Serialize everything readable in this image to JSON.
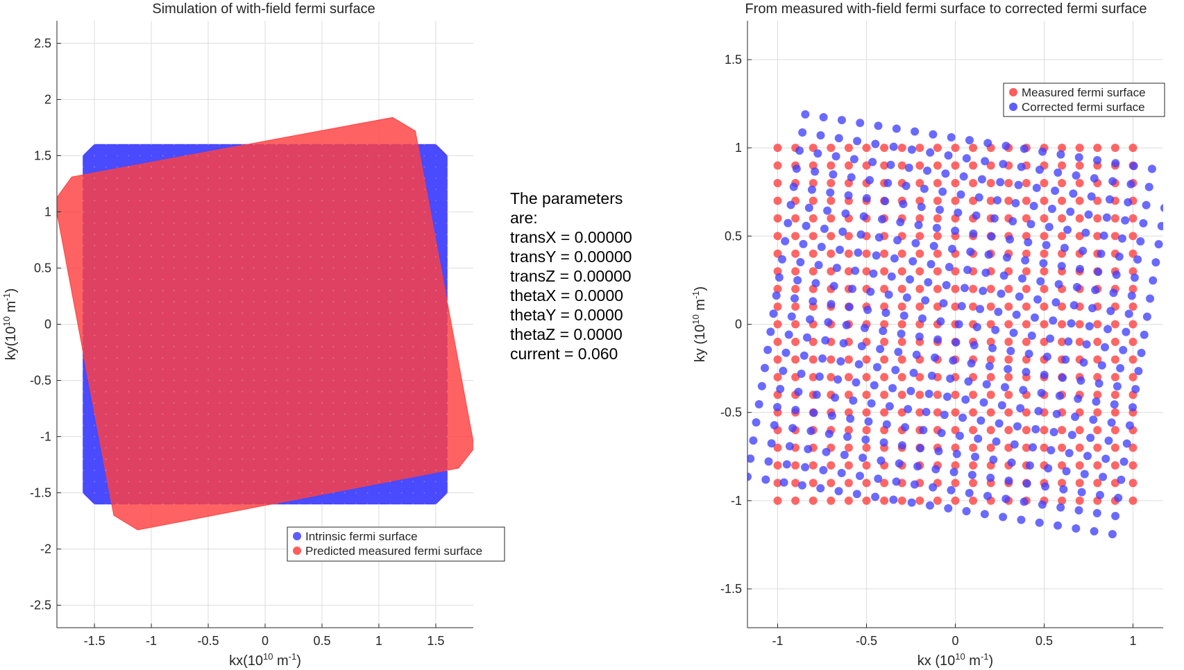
{
  "colors": {
    "blue": "#4040ff",
    "red": "#ff4040",
    "grid": "#dcdcdc",
    "axis": "#262626"
  },
  "chart_data": [
    {
      "type": "scatter",
      "title": "Simulation of with-field fermi surface",
      "xlabel": {
        "text": "kx(10",
        "sup": "10",
        "unit": " m",
        "unitsup": "-1",
        "close": ")"
      },
      "ylabel": {
        "text": "ky(10",
        "sup": "10",
        "unit": " m",
        "unitsup": "-1",
        "close": ")"
      },
      "xlim": [
        -1.83,
        1.83
      ],
      "ylim": [
        -2.7,
        2.7
      ],
      "xticks": [
        -1.5,
        -1,
        -0.5,
        0,
        0.5,
        1,
        1.5
      ],
      "xtick_labels": [
        "-1.5",
        "-1",
        "-0.5",
        "0",
        "0.5",
        "1",
        "1.5"
      ],
      "yticks": [
        -2.5,
        -2,
        -1.5,
        -1,
        -0.5,
        0,
        0.5,
        1,
        1.5,
        2,
        2.5
      ],
      "ytick_labels": [
        "-2.5",
        "-2",
        "-1.5",
        "-1",
        "-0.5",
        "0",
        "0.5",
        "1",
        "1.5",
        "2",
        "2.5"
      ],
      "grid": true,
      "legend_position": "bottom-right",
      "series": [
        {
          "name": "Intrinsic fermi surface",
          "color": "#4040ff",
          "polygon": [
            [
              -1.5,
              1.6
            ],
            [
              1.5,
              1.6
            ],
            [
              1.6,
              1.5
            ],
            [
              1.6,
              -1.5
            ],
            [
              1.5,
              -1.6
            ],
            [
              -1.5,
              -1.6
            ],
            [
              -1.6,
              -1.5
            ],
            [
              -1.6,
              1.5
            ]
          ]
        },
        {
          "name": "Predicted measured fermi surface",
          "color": "#ff4040",
          "polygon": [
            [
              1.12,
              1.84
            ],
            [
              1.32,
              1.72
            ],
            [
              1.84,
              -1.1
            ],
            [
              1.7,
              -1.28
            ],
            [
              -1.12,
              -1.83
            ],
            [
              -1.33,
              -1.7
            ],
            [
              -1.85,
              1.1
            ],
            [
              -1.7,
              1.31
            ]
          ]
        }
      ]
    },
    {
      "type": "scatter",
      "title": "From measured with-field fermi surface to corrected fermi surface",
      "xlabel": {
        "text": "kx  (10",
        "sup": "10",
        "unit": " m",
        "unitsup": "-1",
        "close": ")"
      },
      "ylabel": {
        "text": "ky  (10",
        "sup": "10",
        "unit": " m",
        "unitsup": "-1",
        "close": ")"
      },
      "xlim": [
        -1.17,
        1.17
      ],
      "ylim": [
        -1.72,
        1.72
      ],
      "xticks": [
        -1,
        -0.5,
        0,
        0.5,
        1
      ],
      "xtick_labels": [
        "-1",
        "-0.5",
        "0",
        "0.5",
        "1"
      ],
      "yticks": [
        -1.5,
        -1,
        -0.5,
        0,
        0.5,
        1,
        1.5
      ],
      "ytick_labels": [
        "-1.5",
        "-1",
        "-0.5",
        "0",
        "0.5",
        "1",
        "1.5"
      ],
      "grid": true,
      "legend_position": "top-right",
      "series": [
        {
          "name": "Measured fermi surface",
          "color": "#ff4040",
          "grid_points": {
            "x_range": [
              -1,
              1
            ],
            "y_range": [
              -1,
              1
            ],
            "step": 0.1
          }
        },
        {
          "name": "Corrected fermi surface",
          "color": "#4040ff",
          "grid_points": {
            "x_range": [
              -1,
              1
            ],
            "y_range": [
              -1,
              1
            ],
            "step": 0.1,
            "rotation_deg": -9,
            "scale": 1.04,
            "shift": [
              0.02,
              0.0
            ]
          }
        }
      ]
    }
  ],
  "parameters": {
    "lines": [
      "The parameters",
      "are:",
      "transX = 0.00000",
      "transY = 0.00000",
      "transZ = 0.00000",
      "thetaX = 0.0000",
      "thetaY = 0.0000",
      "thetaZ = 0.0000",
      "current = 0.060"
    ]
  }
}
